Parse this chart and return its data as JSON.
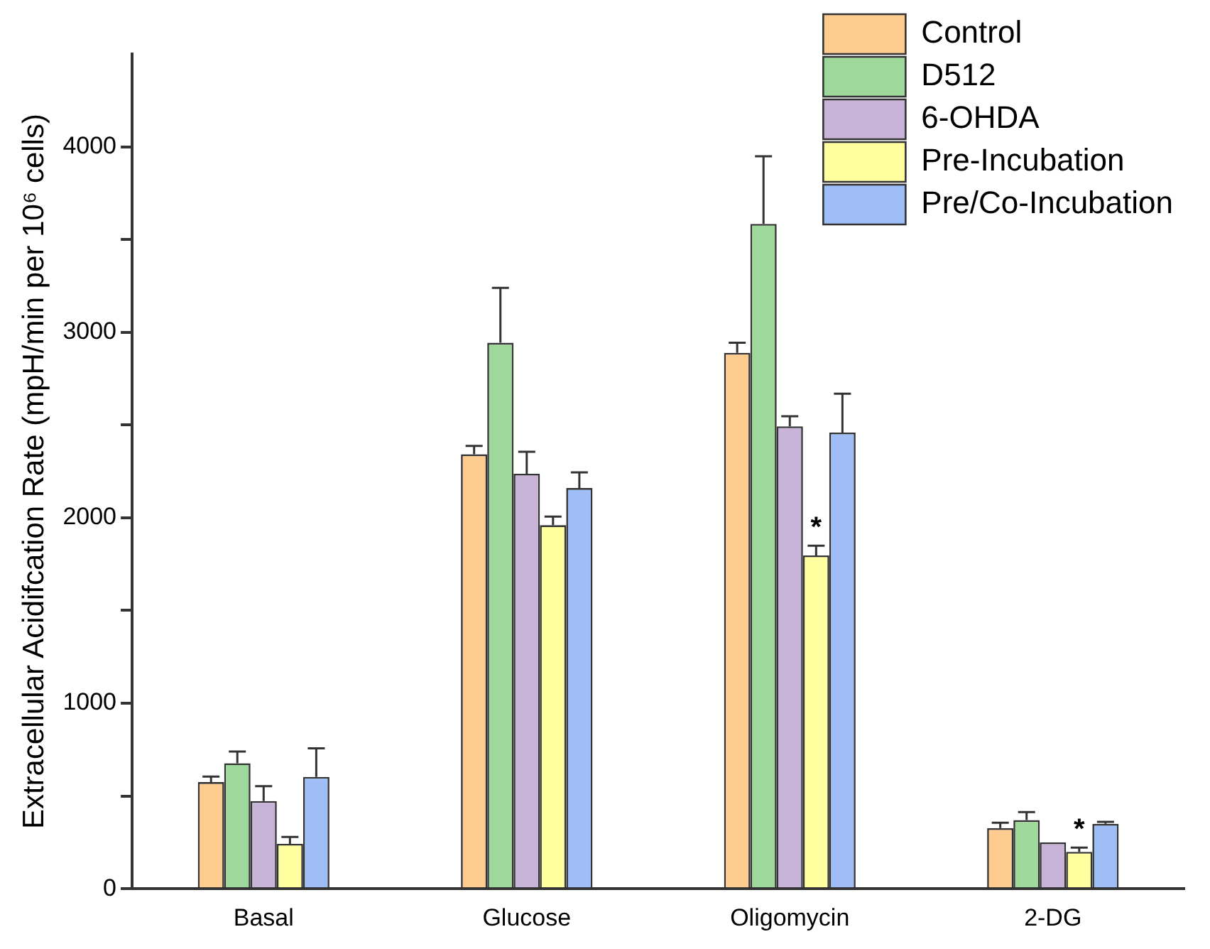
{
  "chart_data": {
    "type": "bar",
    "ylabel": "Extracellular Acidifcation Rate (mpH/min per 10⁶ cells)",
    "categories": [
      "Basal",
      "Glucose",
      "Oligomycin",
      "2-DG"
    ],
    "series": [
      {
        "name": "Control",
        "color": "#ffcc8f",
        "values": [
          575,
          2342,
          2889,
          327
        ],
        "errors": [
          30,
          45,
          54,
          29
        ]
      },
      {
        "name": "D512",
        "color": "#9ed89b",
        "values": [
          677,
          2943,
          3584,
          370
        ],
        "errors": [
          63,
          296,
          365,
          43
        ]
      },
      {
        "name": "6-OHDA",
        "color": "#c8b4d8",
        "values": [
          473,
          2237,
          2493,
          250
        ],
        "errors": [
          80,
          119,
          54,
          null
        ]
      },
      {
        "name": "Pre-Incubation",
        "color": "#ffffa0",
        "values": [
          242,
          1960,
          1797,
          199
        ],
        "errors": [
          37,
          46,
          52,
          23
        ]
      },
      {
        "name": "Pre/Co-Incubation",
        "color": "#9fbef7",
        "values": [
          603,
          2160,
          2459,
          350
        ],
        "errors": [
          154,
          85,
          210,
          11
        ]
      }
    ],
    "ylim": [
      0,
      4500
    ],
    "yticks": [
      0,
      {
        "value": 500,
        "label": null
      },
      1000,
      {
        "value": 1500,
        "label": null
      },
      2000,
      {
        "value": 2500,
        "label": null
      },
      3000,
      {
        "value": 3500,
        "label": null
      },
      4000
    ],
    "annotations": [
      "*",
      "*"
    ],
    "legend": "top right",
    "grid": false
  }
}
